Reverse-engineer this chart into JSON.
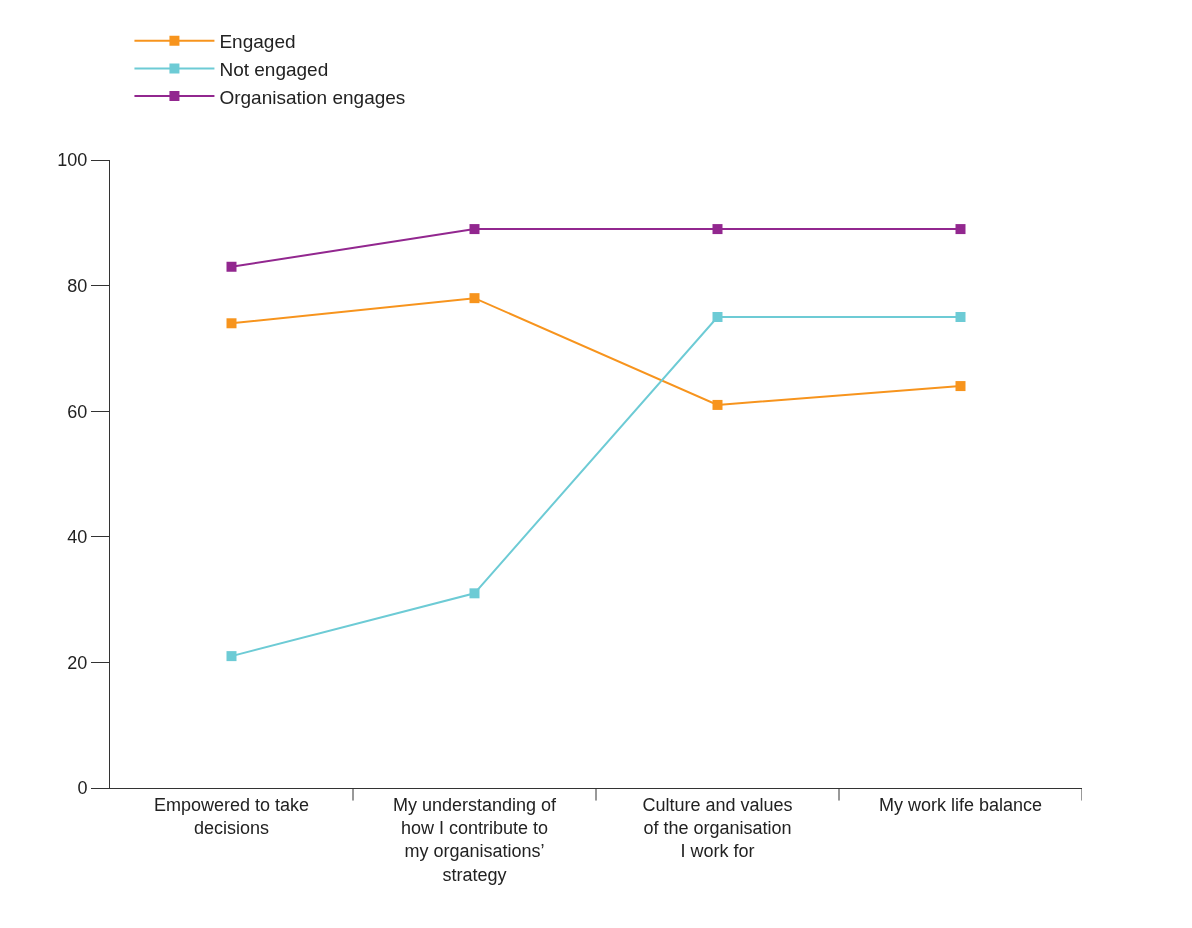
{
  "chart_data": {
    "type": "line",
    "categories": [
      "Empowered to take decisions",
      "My understanding of how I contribute to my organisations’ strategy",
      "Culture and values of the organisation I work for",
      "My work life balance"
    ],
    "series": [
      {
        "name": "Engaged",
        "color": "#f7941d",
        "values": [
          74,
          78,
          61,
          64
        ]
      },
      {
        "name": "Not engaged",
        "color": "#6dcbd5",
        "values": [
          21,
          31,
          75,
          75
        ]
      },
      {
        "name": "Organisation engages",
        "color": "#92278f",
        "values": [
          83,
          89,
          89,
          89
        ]
      }
    ],
    "ylim": [
      0,
      100
    ],
    "yticks": [
      0,
      20,
      40,
      60,
      80,
      100
    ],
    "legend": "top left",
    "marker": "square",
    "line_style": "solid"
  }
}
